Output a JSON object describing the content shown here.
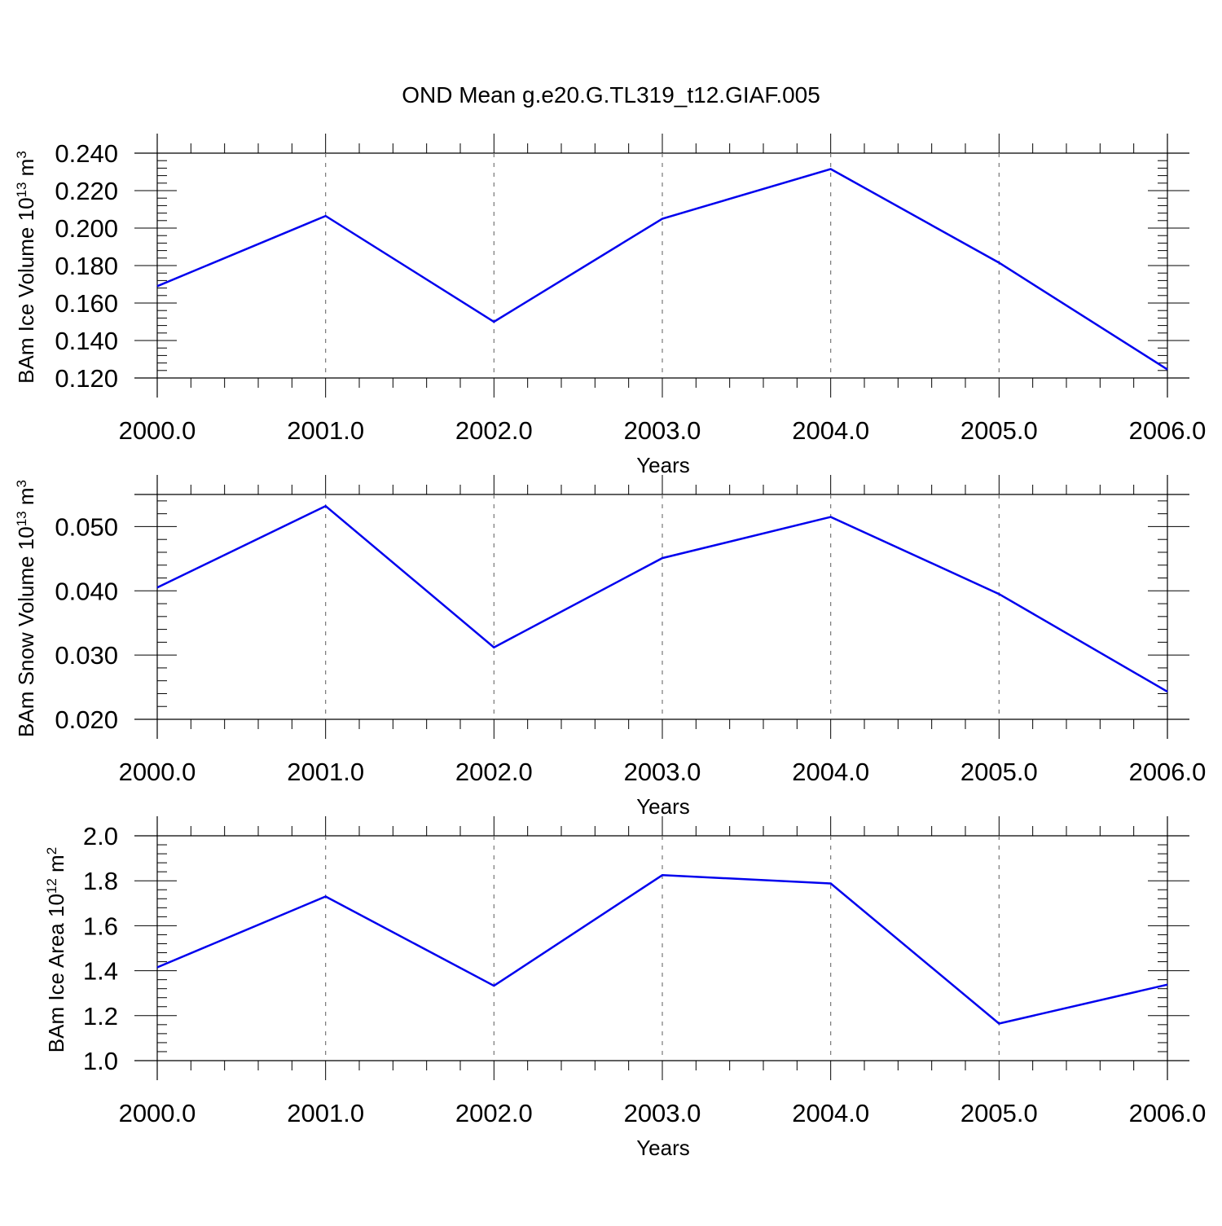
{
  "title": "OND Mean g.e20.G.TL319_t12.GIAF.005",
  "chart_data": [
    {
      "type": "line",
      "x": [
        2000,
        2001,
        2002,
        2003,
        2004,
        2005,
        2006
      ],
      "x_tick_labels": [
        "2000.0",
        "2001.0",
        "2002.0",
        "2003.0",
        "2004.0",
        "2005.0",
        "2006.0"
      ],
      "xlabel": "Years",
      "ylabel": {
        "base": "BAm Ice Volume 10",
        "exp": "13",
        "unit": "m",
        "unit_exp": "3"
      },
      "y_ticks": [
        0.12,
        0.14,
        0.16,
        0.18,
        0.2,
        0.22,
        0.24
      ],
      "y_tick_labels": [
        "0.120",
        "0.140",
        "0.160",
        "0.180",
        "0.200",
        "0.220",
        "0.240"
      ],
      "xlim": [
        2000,
        2006
      ],
      "ylim": [
        0.12,
        0.24
      ],
      "series": [
        {
          "values": [
            0.169,
            0.2065,
            0.15,
            0.205,
            0.2315,
            0.1815,
            0.1245
          ],
          "color": "#0000ee"
        }
      ],
      "grid": "vertical dashed at major x ticks"
    },
    {
      "type": "line",
      "x": [
        2000,
        2001,
        2002,
        2003,
        2004,
        2005,
        2006
      ],
      "x_tick_labels": [
        "2000.0",
        "2001.0",
        "2002.0",
        "2003.0",
        "2004.0",
        "2005.0",
        "2006.0"
      ],
      "xlabel": "Years",
      "ylabel": {
        "base": "BAm Snow Volume 10",
        "exp": "13",
        "unit": "m",
        "unit_exp": "3"
      },
      "y_ticks": [
        0.02,
        0.03,
        0.04,
        0.05
      ],
      "y_tick_labels": [
        "0.020",
        "0.030",
        "0.040",
        "0.050"
      ],
      "xlim": [
        2000,
        2006
      ],
      "ylim": [
        0.02,
        0.055
      ],
      "series": [
        {
          "values": [
            0.0405,
            0.0532,
            0.0312,
            0.0451,
            0.0515,
            0.0395,
            0.0243
          ],
          "color": "#0000ee"
        }
      ],
      "grid": "vertical dashed at major x ticks"
    },
    {
      "type": "line",
      "x": [
        2000,
        2001,
        2002,
        2003,
        2004,
        2005,
        2006
      ],
      "x_tick_labels": [
        "2000.0",
        "2001.0",
        "2002.0",
        "2003.0",
        "2004.0",
        "2005.0",
        "2006.0"
      ],
      "xlabel": "Years",
      "ylabel": {
        "base": "BAm Ice Area 10",
        "exp": "12",
        "unit": "m",
        "unit_exp": "2"
      },
      "y_ticks": [
        1.0,
        1.2,
        1.4,
        1.6,
        1.8,
        2.0
      ],
      "y_tick_labels": [
        "1.0",
        "1.2",
        "1.4",
        "1.6",
        "1.8",
        "2.0"
      ],
      "xlim": [
        2000,
        2006
      ],
      "ylim": [
        1.0,
        2.0
      ],
      "series": [
        {
          "values": [
            1.415,
            1.73,
            1.333,
            1.825,
            1.788,
            1.165,
            1.338
          ],
          "color": "#0000ee"
        }
      ],
      "grid": "vertical dashed at major x ticks"
    }
  ]
}
